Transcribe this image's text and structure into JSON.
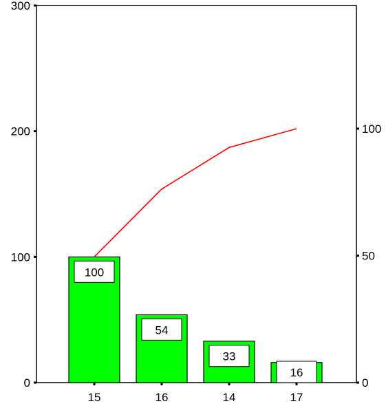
{
  "chart_data": {
    "type": "bar",
    "categories": [
      "15",
      "16",
      "14",
      "17"
    ],
    "values": [
      100,
      54,
      33,
      16
    ],
    "data_labels": [
      "100",
      "54",
      "33",
      "16"
    ],
    "cumulative_percent": [
      49.5,
      76.2,
      92.6,
      100
    ],
    "y_left": {
      "ylim": [
        0,
        300
      ],
      "ticks": [
        0,
        100,
        200,
        300
      ],
      "tick_labels": [
        "0",
        "100",
        "200",
        "300"
      ]
    },
    "y_right": {
      "ylim": [
        0,
        148.5
      ],
      "ticks": [
        0,
        50,
        100
      ],
      "tick_labels": [
        "0",
        "50",
        "100"
      ]
    },
    "title": "",
    "xlabel": "",
    "ylabel": "",
    "grid": false,
    "colors": {
      "bar": "#00ff00",
      "line": "#ff0000",
      "axis": "#000000",
      "label_box": "#ffffff"
    }
  }
}
